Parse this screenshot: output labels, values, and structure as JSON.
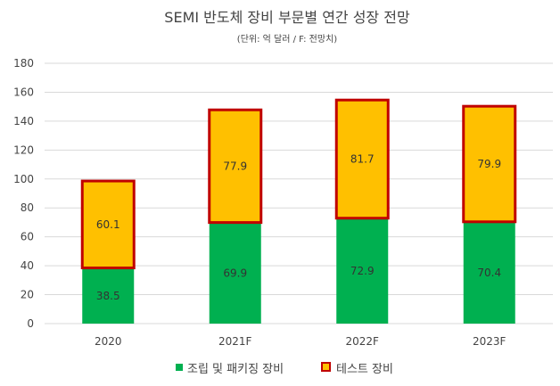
{
  "chart_data": {
    "type": "bar",
    "stacked": true,
    "title": "SEMI 반도체 장비 부문별 연간 성장 전망",
    "subtitle": "(단위: 억 달러 / F: 전망치)",
    "categories": [
      "2020",
      "2021F",
      "2022F",
      "2023F"
    ],
    "series": [
      {
        "name": "조립 및 패키징 장비",
        "values": [
          38.5,
          69.9,
          72.9,
          70.4
        ],
        "color": "#00b050"
      },
      {
        "name": "테스트 장비",
        "values": [
          60.1,
          77.9,
          81.7,
          79.9
        ],
        "color": "#ffc000",
        "border_color": "#c00000"
      }
    ],
    "ylim": [
      0,
      180
    ],
    "yticks": [
      "0",
      "20",
      "40",
      "60",
      "80",
      "100",
      "120",
      "140",
      "160",
      "180"
    ],
    "grid": true,
    "legend_position": "bottom"
  }
}
